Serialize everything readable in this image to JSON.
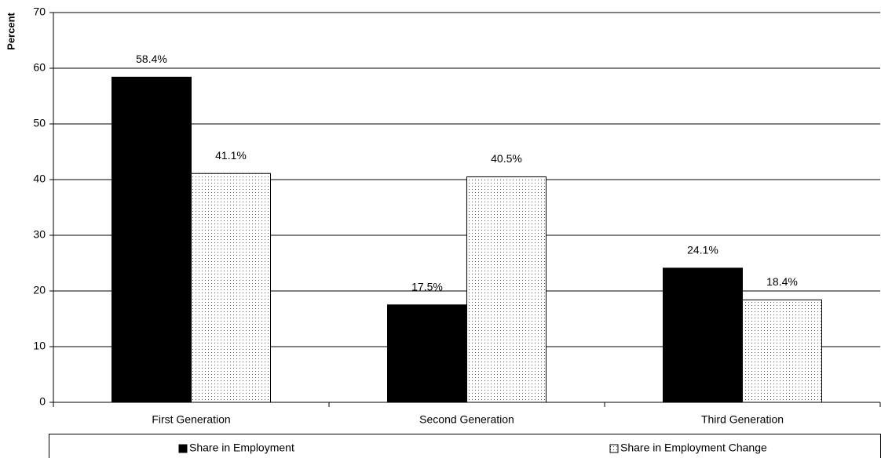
{
  "chart_data": {
    "type": "bar",
    "y_label": "Percent",
    "categories": [
      "First Generation",
      "Second Generation",
      "Third Generation"
    ],
    "series": [
      {
        "name": "Share in Employment",
        "color": "#000000",
        "values": [
          58.4,
          17.5,
          24.1
        ],
        "value_labels": [
          "58.4%",
          "17.5%",
          "24.1%"
        ]
      },
      {
        "name": "Share in Employment Change",
        "color": "#ffffff",
        "pattern": "dots",
        "values": [
          41.1,
          40.5,
          18.4
        ],
        "value_labels": [
          "41.1%",
          "40.5%",
          "18.4%"
        ]
      }
    ],
    "ylim": [
      0,
      70
    ],
    "yticks": [
      0,
      10,
      20,
      30,
      40,
      50,
      60,
      70
    ],
    "grid": true,
    "legend": "bottom"
  }
}
